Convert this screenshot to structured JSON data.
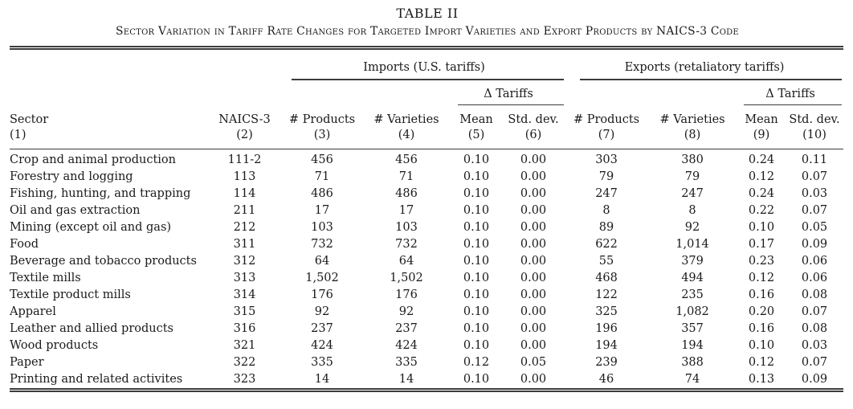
{
  "colors": {
    "background": "#ffffff",
    "text": "#1a1a1a",
    "rule": "#3c3c3c"
  },
  "table": {
    "title": "TABLE II",
    "caption": "Sector Variation in Tariff Rate Changes for Targeted Import Varieties and Export Products by NAICS-3 Code",
    "group_headers": {
      "imports": "Imports (U.S. tariffs)",
      "exports": "Exports (retaliatory tariffs)",
      "imports_sub": "Δ Tariffs",
      "exports_sub": "Δ Tariffs"
    },
    "columns": [
      {
        "label": "Sector",
        "num": "(1)"
      },
      {
        "label": "NAICS-3",
        "num": "(2)"
      },
      {
        "label": "# Products",
        "num": "(3)"
      },
      {
        "label": "# Varieties",
        "num": "(4)"
      },
      {
        "label": "Mean",
        "num": "(5)"
      },
      {
        "label": "Std. dev.",
        "num": "(6)"
      },
      {
        "label": "# Products",
        "num": "(7)"
      },
      {
        "label": "# Varieties",
        "num": "(8)"
      },
      {
        "label": "Mean",
        "num": "(9)"
      },
      {
        "label": "Std. dev.",
        "num": "(10)"
      }
    ],
    "rows": [
      [
        "Crop and animal production",
        "111-2",
        "456",
        "456",
        "0.10",
        "0.00",
        "303",
        "380",
        "0.24",
        "0.11"
      ],
      [
        "Forestry and logging",
        "113",
        "71",
        "71",
        "0.10",
        "0.00",
        "79",
        "79",
        "0.12",
        "0.07"
      ],
      [
        "Fishing, hunting, and trapping",
        "114",
        "486",
        "486",
        "0.10",
        "0.00",
        "247",
        "247",
        "0.24",
        "0.03"
      ],
      [
        "Oil and gas extraction",
        "211",
        "17",
        "17",
        "0.10",
        "0.00",
        "8",
        "8",
        "0.22",
        "0.07"
      ],
      [
        "Mining (except oil and gas)",
        "212",
        "103",
        "103",
        "0.10",
        "0.00",
        "89",
        "92",
        "0.10",
        "0.05"
      ],
      [
        "Food",
        "311",
        "732",
        "732",
        "0.10",
        "0.00",
        "622",
        "1,014",
        "0.17",
        "0.09"
      ],
      [
        "Beverage and tobacco products",
        "312",
        "64",
        "64",
        "0.10",
        "0.00",
        "55",
        "379",
        "0.23",
        "0.06"
      ],
      [
        "Textile mills",
        "313",
        "1,502",
        "1,502",
        "0.10",
        "0.00",
        "468",
        "494",
        "0.12",
        "0.06"
      ],
      [
        "Textile product mills",
        "314",
        "176",
        "176",
        "0.10",
        "0.00",
        "122",
        "235",
        "0.16",
        "0.08"
      ],
      [
        "Apparel",
        "315",
        "92",
        "92",
        "0.10",
        "0.00",
        "325",
        "1,082",
        "0.20",
        "0.07"
      ],
      [
        "Leather and allied products",
        "316",
        "237",
        "237",
        "0.10",
        "0.00",
        "196",
        "357",
        "0.16",
        "0.08"
      ],
      [
        "Wood products",
        "321",
        "424",
        "424",
        "0.10",
        "0.00",
        "194",
        "194",
        "0.10",
        "0.03"
      ],
      [
        "Paper",
        "322",
        "335",
        "335",
        "0.12",
        "0.05",
        "239",
        "388",
        "0.12",
        "0.07"
      ],
      [
        "Printing and related activites",
        "323",
        "14",
        "14",
        "0.10",
        "0.00",
        "46",
        "74",
        "0.13",
        "0.09"
      ]
    ]
  }
}
